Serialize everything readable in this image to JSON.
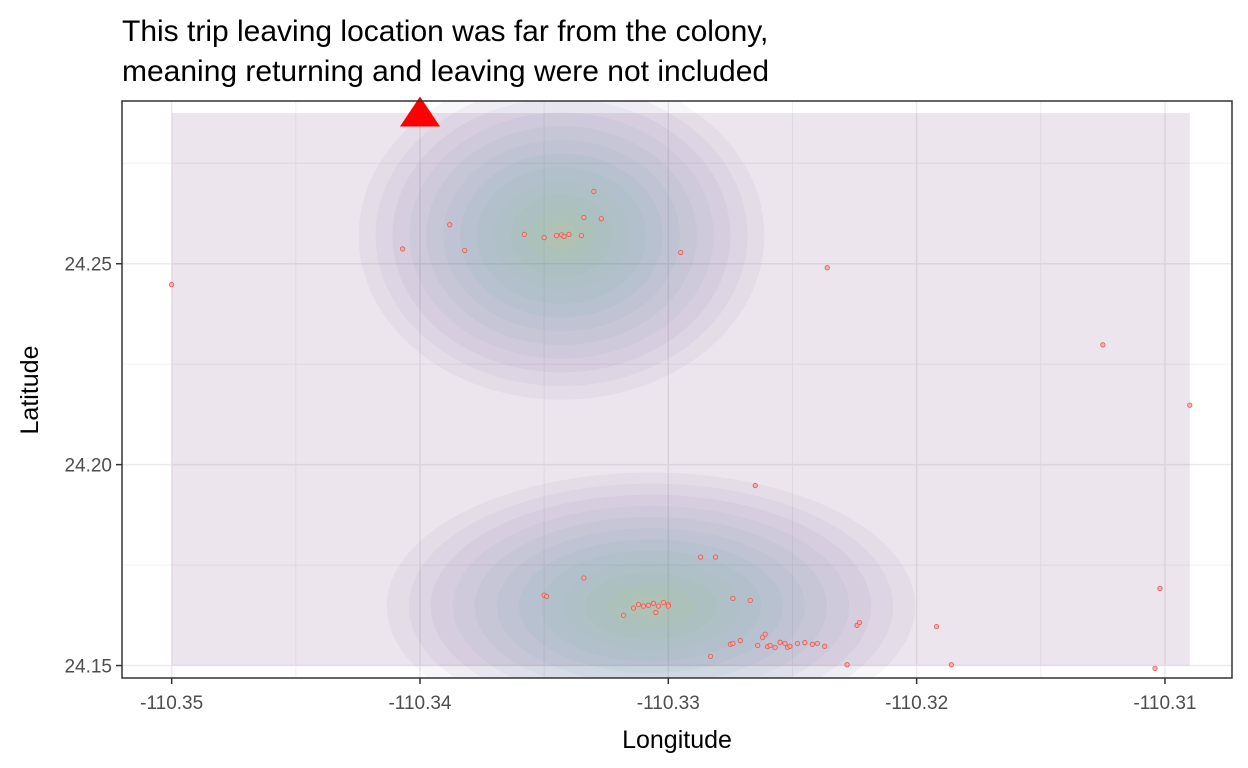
{
  "chart_data": {
    "type": "scatter",
    "title_lines": [
      "This trip leaving location was far from the colony,",
      "meaning returning and leaving were not included"
    ],
    "xlabel": "Longitude",
    "ylabel": "Latitude",
    "xlim": [
      -110.352,
      -110.3073
    ],
    "ylim": [
      24.1469,
      24.2905
    ],
    "x_ticks": [
      -110.35,
      -110.34,
      -110.33,
      -110.32,
      -110.31
    ],
    "x_tick_labels": [
      "-110.35",
      "-110.34",
      "-110.33",
      "-110.32",
      "-110.31"
    ],
    "y_ticks": [
      24.15,
      24.2,
      24.25
    ],
    "y_tick_labels": [
      "24.15",
      "24.20",
      "24.25"
    ],
    "grid": true,
    "density_region": {
      "x": [
        -110.35,
        -110.309
      ],
      "y": [
        24.15,
        24.2875
      ]
    },
    "density_peaks": [
      {
        "x": -110.3307,
        "y": 24.1648,
        "sx": 0.0056,
        "sy": 0.0175
      },
      {
        "x": -110.3343,
        "y": 24.257,
        "sx": 0.0043,
        "sy": 0.0215
      }
    ],
    "colony": {
      "x": -110.34,
      "y": 24.2875,
      "marker": "triangle",
      "color": "#ff0000"
    },
    "points": [
      [
        -110.35,
        24.2448
      ],
      [
        -110.3407,
        24.2537
      ],
      [
        -110.3388,
        24.2597
      ],
      [
        -110.3382,
        24.2533
      ],
      [
        -110.3358,
        24.2573
      ],
      [
        -110.335,
        24.2565
      ],
      [
        -110.3345,
        24.257
      ],
      [
        -110.3343,
        24.2572
      ],
      [
        -110.3342,
        24.2568
      ],
      [
        -110.334,
        24.2573
      ],
      [
        -110.3335,
        24.257
      ],
      [
        -110.3334,
        24.2615
      ],
      [
        -110.333,
        24.268
      ],
      [
        -110.3327,
        24.2612
      ],
      [
        -110.3295,
        24.2528
      ],
      [
        -110.3236,
        24.249
      ],
      [
        -110.3125,
        24.2298
      ],
      [
        -110.309,
        24.2148
      ],
      [
        -110.3265,
        24.1948
      ],
      [
        -110.335,
        24.1675
      ],
      [
        -110.3349,
        24.1672
      ],
      [
        -110.3334,
        24.1718
      ],
      [
        -110.3318,
        24.1625
      ],
      [
        -110.3314,
        24.1643
      ],
      [
        -110.3312,
        24.1652
      ],
      [
        -110.331,
        24.1648
      ],
      [
        -110.3308,
        24.165
      ],
      [
        -110.3306,
        24.1655
      ],
      [
        -110.3304,
        24.1648
      ],
      [
        -110.3305,
        24.1632
      ],
      [
        -110.3302,
        24.1657
      ],
      [
        -110.33,
        24.1652
      ],
      [
        -110.33,
        24.1648
      ],
      [
        -110.3287,
        24.177
      ],
      [
        -110.3283,
        24.1523
      ],
      [
        -110.3281,
        24.177
      ],
      [
        -110.3275,
        24.1553
      ],
      [
        -110.3274,
        24.1555
      ],
      [
        -110.3274,
        24.1667
      ],
      [
        -110.3271,
        24.1562
      ],
      [
        -110.3267,
        24.1662
      ],
      [
        -110.3264,
        24.155
      ],
      [
        -110.3262,
        24.157
      ],
      [
        -110.3261,
        24.1578
      ],
      [
        -110.326,
        24.1547
      ],
      [
        -110.3259,
        24.155
      ],
      [
        -110.3257,
        24.1545
      ],
      [
        -110.3255,
        24.1558
      ],
      [
        -110.3253,
        24.1555
      ],
      [
        -110.3252,
        24.1545
      ],
      [
        -110.3251,
        24.1548
      ],
      [
        -110.3248,
        24.1555
      ],
      [
        -110.3245,
        24.1557
      ],
      [
        -110.3242,
        24.1553
      ],
      [
        -110.324,
        24.1555
      ],
      [
        -110.3237,
        24.1548
      ],
      [
        -110.3228,
        24.1502
      ],
      [
        -110.3224,
        24.16
      ],
      [
        -110.3223,
        24.1607
      ],
      [
        -110.3192,
        24.1597
      ],
      [
        -110.3186,
        24.1502
      ],
      [
        -110.3104,
        24.1493
      ],
      [
        -110.3102,
        24.1692
      ]
    ]
  }
}
